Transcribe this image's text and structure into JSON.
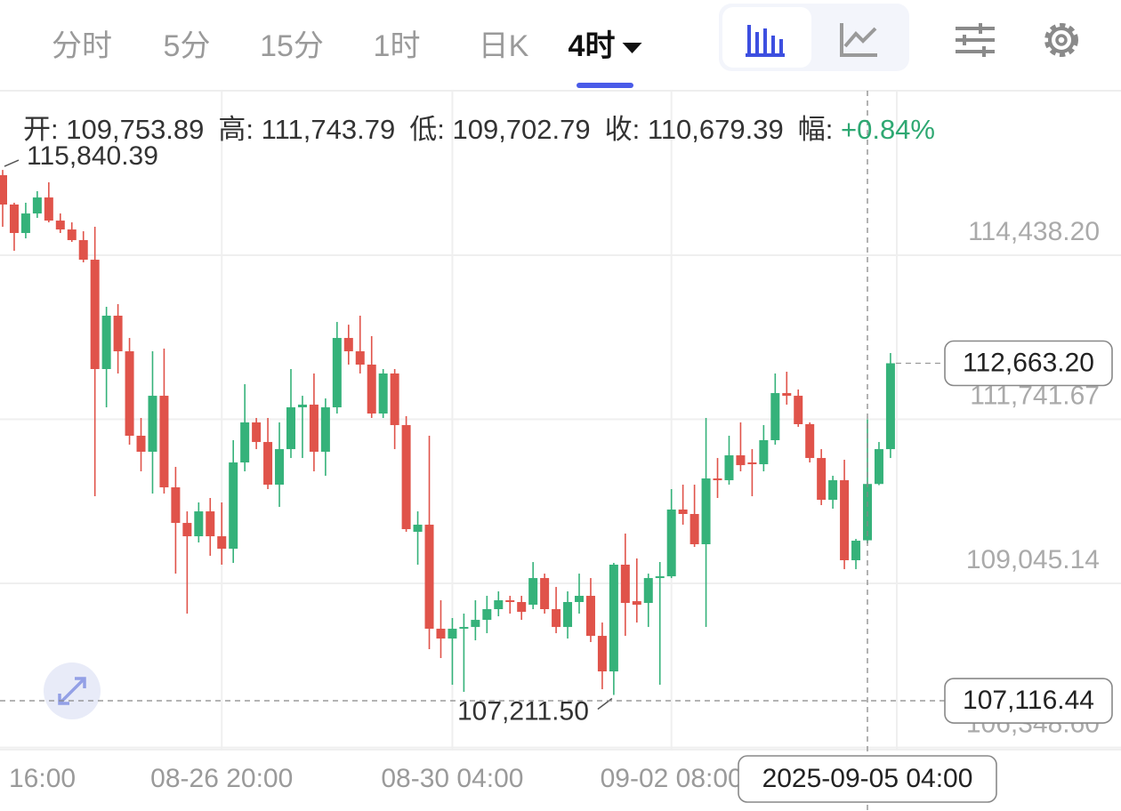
{
  "tabs": [
    {
      "label": "分时"
    },
    {
      "label": "5分"
    },
    {
      "label": "15分"
    },
    {
      "label": "1时"
    },
    {
      "label": "日K"
    },
    {
      "label": "4时",
      "active": true
    }
  ],
  "header": {
    "items": [
      {
        "label": "开:",
        "value": "109,753.89"
      },
      {
        "label": "高:",
        "value": "111,743.79"
      },
      {
        "label": "低:",
        "value": "109,702.79"
      },
      {
        "label": "收:",
        "value": "110,679.39"
      },
      {
        "label": "幅:",
        "value": "+0.84%"
      }
    ]
  },
  "chart_data": {
    "type": "candlestick",
    "categories": [
      "16:00",
      null,
      null,
      null,
      null,
      null,
      null,
      null,
      null,
      null,
      null,
      null,
      null,
      null,
      null,
      null,
      null,
      null,
      null,
      "08-26 20:00",
      null,
      null,
      null,
      null,
      null,
      null,
      null,
      null,
      null,
      null,
      null,
      null,
      null,
      null,
      null,
      null,
      null,
      null,
      null,
      "08-30 04:00",
      null,
      null,
      null,
      null,
      null,
      null,
      null,
      null,
      null,
      null,
      null,
      null,
      null,
      null,
      null,
      null,
      null,
      null,
      "09-02 08:00",
      null,
      null,
      null,
      null,
      null,
      null,
      null,
      null,
      null,
      null,
      null,
      null,
      null,
      null,
      null,
      null,
      null,
      null,
      null
    ],
    "open": [
      115754,
      115272,
      114804,
      115125,
      115388,
      115008,
      114862,
      114687,
      114365,
      112568,
      113445,
      112860,
      111472,
      111209,
      112129,
      110624,
      110039,
      109820,
      110229,
      109820,
      109615,
      111033,
      111691,
      111369,
      110668,
      111252,
      111939,
      111983,
      111209,
      111939,
      113079,
      112860,
      112641,
      111837,
      112495,
      111647,
      109893,
      110010,
      108300,
      108139,
      108300,
      108329,
      108446,
      108622,
      108768,
      108739,
      108695,
      109133,
      108622,
      108329,
      108739,
      108841,
      108183,
      107599,
      109353,
      108753,
      108724,
      109133,
      109162,
      110259,
      110186,
      109689,
      110770,
      110741,
      111150,
      111033,
      111004,
      111399,
      112173,
      112129,
      111662,
      111106,
      110419,
      110741,
      109426,
      109753.89,
      110679.39,
      111252
    ],
    "high": [
      115840.39,
      115301,
      115301,
      115491,
      115637,
      115125,
      114979,
      114833,
      114906,
      113591,
      113635,
      113079,
      111764,
      112860,
      112904,
      110960,
      110229,
      110376,
      110449,
      110376,
      111399,
      112319,
      111764,
      111764,
      111691,
      112568,
      112129,
      112495,
      112085,
      113342,
      113297,
      113445,
      113109,
      112568,
      112568,
      111793,
      110229,
      111472,
      108768,
      108476,
      108549,
      108768,
      108841,
      108914,
      108841,
      108841,
      109396,
      109206,
      108987,
      108914,
      109206,
      109133,
      108402,
      109382,
      109864,
      109455,
      109206,
      109396,
      110595,
      110668,
      110668,
      111764,
      111106,
      111472,
      111691,
      111252,
      111647,
      112495,
      112524,
      112232,
      111691,
      111252,
      110814,
      111077,
      109776,
      111743.79,
      111369,
      112831
    ],
    "low": [
      114906,
      114512,
      114716,
      115052,
      114979,
      114804,
      114658,
      114322,
      110478,
      111939,
      112495,
      111325,
      110887,
      110522,
      110522,
      109206,
      108549,
      109718,
      109499,
      109353,
      109382,
      110887,
      111252,
      110595,
      110302,
      111106,
      111106,
      110887,
      110814,
      111837,
      112641,
      112495,
      111764,
      111764,
      111252,
      109893,
      109353,
      107964,
      107818,
      107379,
      107263,
      108110,
      108227,
      108505,
      108549,
      108446,
      108622,
      108549,
      108227,
      108139,
      108549,
      108081,
      107306,
      107211.5,
      108183,
      108402,
      108329,
      107379,
      109133,
      110010,
      109645,
      108329,
      110449,
      110668,
      110887,
      110478,
      110887,
      111325,
      111983,
      111618,
      111033,
      110332,
      110273,
      109279,
      109279,
      109702.79,
      110660,
      111106
    ],
    "close": [
      115272,
      114804,
      115125,
      115388,
      115008,
      114862,
      114687,
      114365,
      112568,
      113445,
      112860,
      111472,
      111209,
      112129,
      110624,
      110039,
      109820,
      110229,
      109820,
      109615,
      111033,
      111691,
      111369,
      110668,
      111252,
      111939,
      111983,
      111209,
      111939,
      113079,
      112860,
      112641,
      111837,
      112495,
      111647,
      109937,
      110010,
      108300,
      108139,
      108300,
      108329,
      108446,
      108622,
      108768,
      108739,
      108578,
      109133,
      108622,
      108329,
      108739,
      108841,
      108183,
      107599,
      109353,
      108724,
      108695,
      109133,
      109162,
      110259,
      110186,
      109689,
      110770,
      110741,
      111150,
      110989,
      111004,
      111399,
      112173,
      112129,
      111662,
      111106,
      110419,
      110741,
      109426,
      109747,
      110679.39,
      111252,
      112663.2
    ],
    "up_color": "#35b27a",
    "down_color": "#e0534a",
    "ylim": [
      106313,
      117128
    ],
    "yticks": [
      {
        "value": 106348.6,
        "label": "106,348.60"
      },
      {
        "value": 109045.14,
        "label": "109,045.14"
      },
      {
        "value": 111741.67,
        "label": "111,741.67"
      },
      {
        "value": 114438.2,
        "label": "114,438.20"
      }
    ],
    "grid": true,
    "high_marker": {
      "value": 115840.39,
      "label": "115,840.39"
    },
    "low_marker": {
      "value": 107211.5,
      "label": "107,211.50"
    },
    "last_price": {
      "value": 112663.2,
      "label": "112,663.20"
    },
    "crosshair": {
      "value": 107116.44,
      "label": "107,116.44",
      "x_label": "2025-09-05 04:00"
    }
  }
}
